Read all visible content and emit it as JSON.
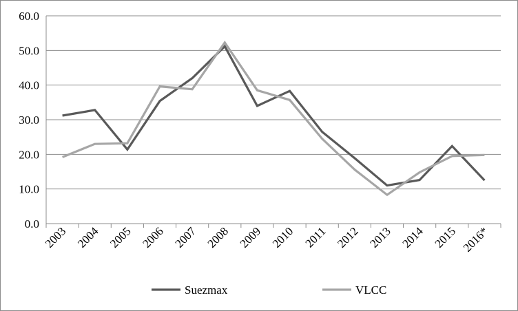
{
  "chart_data": {
    "type": "line",
    "title": "",
    "xlabel": "",
    "ylabel": "",
    "categories": [
      "2003",
      "2004",
      "2005",
      "2006",
      "2007",
      "2008",
      "2009",
      "2010",
      "2011",
      "2012",
      "2013",
      "2014",
      "2015",
      "2016*"
    ],
    "ylim": [
      0,
      60
    ],
    "yticks": [
      "0.0",
      "10.0",
      "20.0",
      "30.0",
      "40.0",
      "50.0",
      "60.0"
    ],
    "grid": "horizontal",
    "legend_position": "bottom",
    "series": [
      {
        "name": "Suezmax",
        "color": "#595959",
        "values": [
          31.2,
          32.8,
          21.4,
          35.4,
          42.0,
          51.2,
          34.0,
          38.3,
          26.5,
          18.9,
          11.0,
          12.6,
          22.4,
          12.5
        ]
      },
      {
        "name": "VLCC",
        "color": "#a6a6a6",
        "values": [
          19.2,
          23.0,
          23.2,
          39.6,
          38.8,
          52.3,
          38.5,
          35.7,
          24.5,
          15.6,
          8.3,
          14.8,
          19.5,
          19.8
        ]
      }
    ]
  }
}
